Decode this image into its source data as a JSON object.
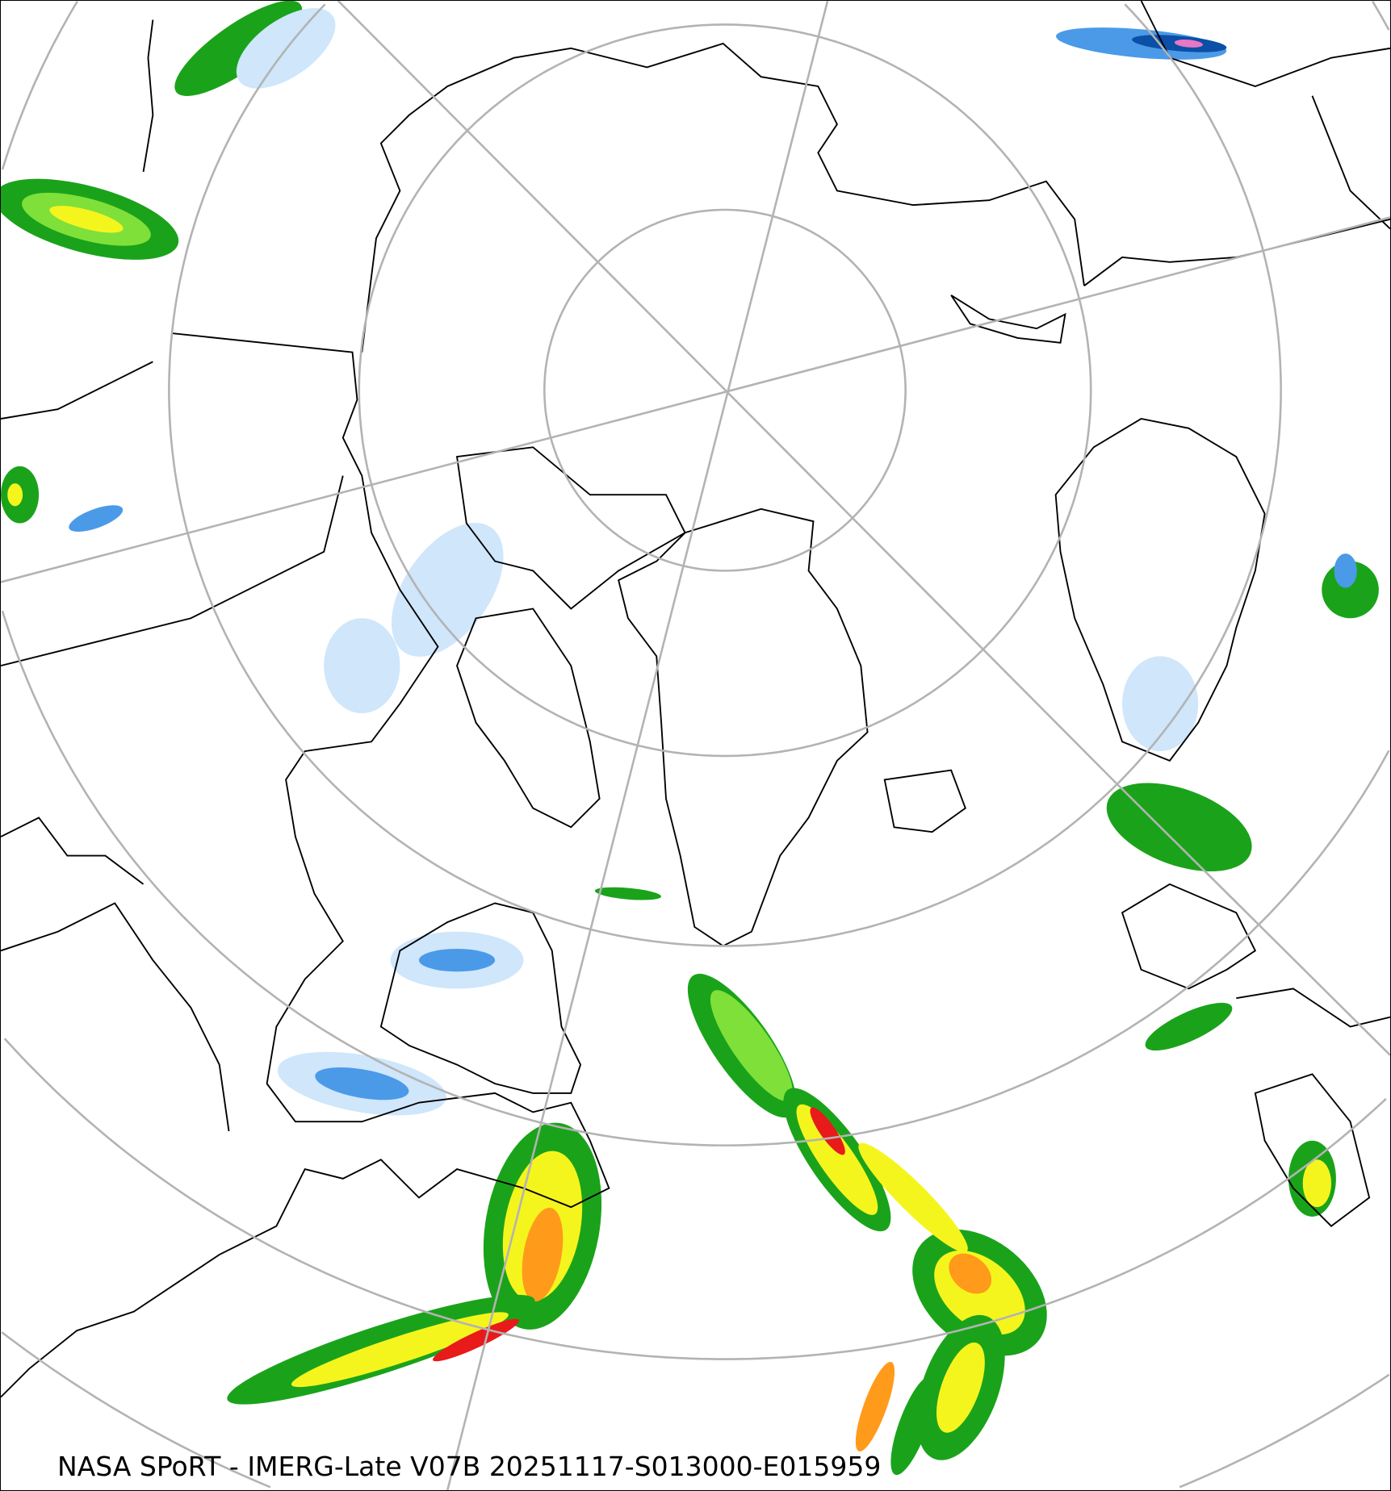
{
  "map": {
    "projection": "north polar stereographic",
    "caption": "NASA SPoRT - IMERG-Late V07B 20251117-S013000-E015959",
    "colors": {
      "graticule": "#b3b3b3",
      "coastline": "#000000",
      "precip_light_snow": "#cfe6fb",
      "precip_snow": "#4a9ae8",
      "precip_heavy_snow": "#0b4fa6",
      "precip_light_rain": "#1aa31a",
      "precip_rain": "#7fe03a",
      "precip_moderate": "#f5f51e",
      "precip_heavy": "#ff9a1a",
      "precip_very_heavy": "#e81a1a",
      "precip_extreme": "#e877c4"
    }
  }
}
